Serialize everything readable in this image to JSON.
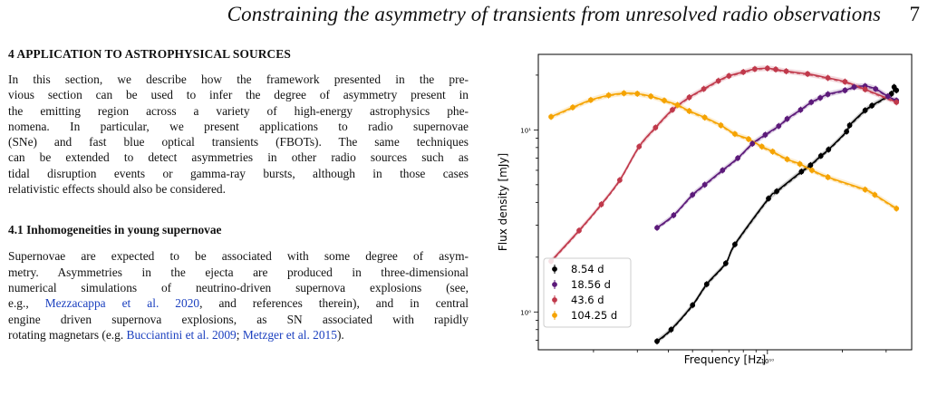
{
  "header": {
    "running_title": "Constraining the asymmetry of transients from unresolved radio observations",
    "page_number": "7"
  },
  "section": {
    "heading": "4  APPLICATION TO ASTROPHYSICAL SOURCES",
    "para_lines": [
      "In this section, we describe how the framework presented in the pre-",
      "vious section can be used to infer the degree of asymmetry present in",
      "the emitting region across a variety of high-energy astrophysics phe-",
      "nomena. In particular, we present applications to radio supernovae",
      "(SNe) and fast blue optical transients (FBOTs). The same techniques",
      "can be extended to detect asymmetries in other radio sources such as",
      "tidal disruption events or gamma-ray bursts, although in those cases",
      "relativistic effects should also be considered."
    ]
  },
  "subsection": {
    "heading": "4.1  Inhomogeneities in young supernovae",
    "line1": "Supernovae are expected to be associated with some degree of asym-",
    "line2": "metry. Asymmetries in the ejecta are produced in three-dimensional",
    "line3": "numerical simulations of neutrino-driven supernova explosions (see,",
    "line4_pre": "e.g.,  ",
    "line4_cite": "Mezzacappa et al. 2020",
    "line4_post": ", and references therein), and in central",
    "line5": "engine driven supernova explosions, as SN associated with rapidly",
    "line6_pre": "rotating magnetars (e.g. ",
    "line6_cite1": "Bucciantini et al. 2009",
    "line6_mid": "; ",
    "line6_cite2": "Metzger et al. 2015",
    "line6_post": ")."
  },
  "chart_data": {
    "type": "scatter",
    "xscale": "log",
    "yscale": "log",
    "xlabel": "Frequency [Hz]",
    "ylabel": "Flux density [mJy]",
    "x_tick_labels": [
      "10¹⁰"
    ],
    "y_tick_labels": [
      "10⁰",
      "10¹"
    ],
    "xlim": [
      1200000000.0,
      38000000000.0
    ],
    "ylim": [
      0.62,
      26
    ],
    "legend_position": "lower-left",
    "series": [
      {
        "name": "8.54 d",
        "color": "#000000",
        "x": [
          3600000000.0,
          4100000000.0,
          5000000000.0,
          5700000000.0,
          6800000000.0,
          7400000000.0,
          10100000000.0,
          10900000000.0,
          13700000000.0,
          14900000000.0,
          16400000000.0,
          17600000000.0,
          20800000000.0,
          21400000000.0,
          24700000000.0,
          26300000000.0,
          31500000000.0,
          32300000000.0,
          33000000000.0
        ],
        "y": [
          0.69,
          0.8,
          1.09,
          1.42,
          1.85,
          2.35,
          4.2,
          4.6,
          5.9,
          6.4,
          7.2,
          7.8,
          9.8,
          10.6,
          12.8,
          13.6,
          15.8,
          17.2,
          16.5
        ]
      },
      {
        "name": "18.56 d",
        "color": "#5c1a7a",
        "x": [
          3600000000.0,
          4200000000.0,
          5000000000.0,
          5600000000.0,
          6600000000.0,
          7600000000.0,
          8700000000.0,
          9800000000.0,
          11100000000.0,
          12000000000.0,
          13600000000.0,
          15000000000.0,
          16300000000.0,
          17500000000.0,
          20500000000.0,
          22300000000.0,
          24700000000.0,
          27200000000.0,
          30500000000.0,
          33000000000.0
        ],
        "y": [
          2.9,
          3.4,
          4.4,
          5.0,
          6.0,
          7.0,
          8.4,
          9.4,
          10.5,
          11.5,
          12.9,
          14.2,
          15.0,
          15.7,
          16.5,
          17.2,
          17.4,
          16.8,
          15.3,
          14.5
        ]
      },
      {
        "name": "43.6 d",
        "color": "#c0394b",
        "x": [
          1350000000.0,
          1750000000.0,
          2150000000.0,
          2550000000.0,
          3050000000.0,
          3550000000.0,
          4150000000.0,
          4850000000.0,
          5550000000.0,
          6350000000.0,
          7000000000.0,
          8000000000.0,
          8900000000.0,
          10000000000.0,
          10800000000.0,
          11900000000.0,
          14500000000.0,
          17500000000.0,
          20500000000.0,
          24700000000.0,
          33000000000.0
        ],
        "y": [
          1.9,
          2.8,
          3.9,
          5.3,
          8.1,
          10.3,
          12.9,
          15.1,
          16.8,
          18.6,
          19.8,
          20.8,
          21.6,
          21.8,
          21.5,
          21.0,
          20.3,
          19.3,
          18.4,
          16.7,
          14.2
        ]
      },
      {
        "name": "104.25 d",
        "color": "#f5a300",
        "x": [
          1350000000.0,
          1650000000.0,
          1950000000.0,
          2300000000.0,
          2650000000.0,
          3000000000.0,
          3400000000.0,
          3850000000.0,
          4350000000.0,
          4850000000.0,
          5600000000.0,
          6500000000.0,
          7400000000.0,
          8400000000.0,
          9500000000.0,
          10500000000.0,
          12000000000.0,
          13500000000.0,
          15100000000.0,
          17500000000.0,
          24700000000.0,
          27000000000.0,
          33000000000.0
        ],
        "y": [
          11.8,
          13.3,
          14.6,
          15.5,
          15.9,
          15.8,
          15.3,
          14.5,
          13.7,
          12.7,
          11.7,
          10.6,
          9.5,
          8.9,
          8.1,
          7.6,
          6.9,
          6.5,
          6.0,
          5.5,
          4.7,
          4.4,
          3.7
        ]
      }
    ]
  }
}
